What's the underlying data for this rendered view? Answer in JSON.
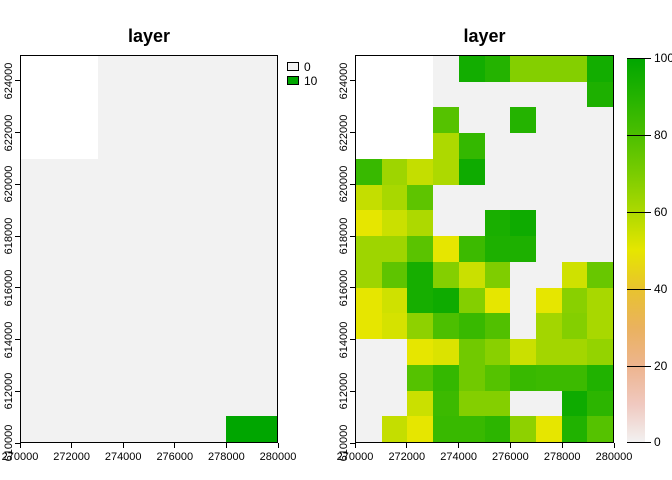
{
  "figure": {
    "background": "#ffffff",
    "na_color": "#ffffff"
  },
  "palette": {
    "name": "reversed-terrain-colors",
    "low_color": "#F2F2F2",
    "high_color": "#00A600",
    "stops": [
      "#F2F2F2",
      "#F0C9C0",
      "#EDB48E",
      "#EAB25E",
      "#E8C32E",
      "#E6E600",
      "#ADD900",
      "#7ACC00",
      "#4CBF00",
      "#24B300",
      "#00A600"
    ]
  },
  "chart_data": [
    {
      "type": "heatmap",
      "title": "layer",
      "x_range": [
        270000,
        280000
      ],
      "y_range": [
        610000,
        625000
      ],
      "cell_size": 1000,
      "x_ticks": [
        "270000",
        "272000",
        "274000",
        "276000",
        "278000",
        "280000"
      ],
      "y_ticks": [
        "610000",
        "612000",
        "614000",
        "616000",
        "618000",
        "620000",
        "622000",
        "624000"
      ],
      "domain": [
        0,
        10
      ],
      "legend": {
        "type": "discrete",
        "entries": [
          {
            "label": "0",
            "value": 0
          },
          {
            "label": "10",
            "value": 10
          }
        ]
      },
      "orientation": "rows top-to-bottom (y 625000 to 610000), cols left-to-right; null = NA (white)",
      "values": [
        [
          null,
          null,
          null,
          0,
          0,
          0,
          0,
          0,
          0,
          0
        ],
        [
          null,
          null,
          null,
          0,
          0,
          0,
          0,
          0,
          0,
          0
        ],
        [
          null,
          null,
          null,
          0,
          0,
          0,
          0,
          0,
          0,
          0
        ],
        [
          null,
          null,
          null,
          0,
          0,
          0,
          0,
          0,
          0,
          0
        ],
        [
          0,
          0,
          0,
          0,
          0,
          0,
          0,
          0,
          0,
          0
        ],
        [
          0,
          0,
          0,
          0,
          0,
          0,
          0,
          0,
          0,
          0
        ],
        [
          0,
          0,
          0,
          0,
          0,
          0,
          0,
          0,
          0,
          0
        ],
        [
          0,
          0,
          0,
          0,
          0,
          0,
          0,
          0,
          0,
          0
        ],
        [
          0,
          0,
          0,
          0,
          0,
          0,
          0,
          0,
          0,
          0
        ],
        [
          0,
          0,
          0,
          0,
          0,
          0,
          0,
          0,
          0,
          0
        ],
        [
          0,
          0,
          0,
          0,
          0,
          0,
          0,
          0,
          0,
          0
        ],
        [
          0,
          0,
          0,
          0,
          0,
          0,
          0,
          0,
          0,
          0
        ],
        [
          0,
          0,
          0,
          0,
          0,
          0,
          0,
          0,
          0,
          0
        ],
        [
          0,
          0,
          0,
          0,
          0,
          0,
          0,
          0,
          0,
          0
        ],
        [
          0,
          0,
          0,
          0,
          0,
          0,
          0,
          0,
          10,
          10
        ]
      ]
    },
    {
      "type": "heatmap",
      "title": "layer",
      "x_range": [
        270000,
        280000
      ],
      "y_range": [
        610000,
        625000
      ],
      "cell_size": 1000,
      "x_ticks": [
        "270000",
        "272000",
        "274000",
        "276000",
        "278000",
        "280000"
      ],
      "y_ticks": [
        "610000",
        "612000",
        "614000",
        "616000",
        "618000",
        "620000",
        "622000",
        "624000"
      ],
      "domain": [
        0,
        100
      ],
      "legend": {
        "type": "colorbar",
        "ticks": [
          "0",
          "20",
          "40",
          "60",
          "80",
          "100"
        ],
        "min": 0,
        "max": 100
      },
      "orientation": "rows top-to-bottom (y 625000 to 610000), cols left-to-right; null = NA (white)",
      "values": [
        [
          null,
          null,
          null,
          0,
          95,
          90,
          68,
          68,
          68,
          95
        ],
        [
          null,
          null,
          null,
          0,
          0,
          0,
          0,
          0,
          0,
          92
        ],
        [
          null,
          null,
          null,
          78,
          0,
          0,
          90,
          0,
          0,
          0
        ],
        [
          null,
          null,
          null,
          60,
          86,
          0,
          0,
          0,
          0,
          0
        ],
        [
          85,
          63,
          56,
          60,
          96,
          0,
          0,
          0,
          0,
          0
        ],
        [
          56,
          61,
          76,
          0,
          0,
          0,
          0,
          0,
          0,
          0
        ],
        [
          50,
          55,
          60,
          0,
          0,
          93,
          96,
          0,
          0,
          0
        ],
        [
          63,
          63,
          77,
          50,
          84,
          92,
          92,
          0,
          0,
          0
        ],
        [
          63,
          76,
          94,
          68,
          55,
          69,
          0,
          0,
          54,
          74
        ],
        [
          50,
          54,
          94,
          96,
          68,
          50,
          0,
          50,
          67,
          61
        ],
        [
          50,
          53,
          66,
          80,
          85,
          79,
          0,
          62,
          68,
          61
        ],
        [
          0,
          0,
          50,
          52,
          72,
          67,
          55,
          62,
          62,
          65
        ],
        [
          0,
          0,
          78,
          86,
          72,
          78,
          85,
          84,
          84,
          91
        ],
        [
          0,
          0,
          55,
          84,
          68,
          68,
          0,
          0,
          96,
          88
        ],
        [
          0,
          56,
          50,
          85,
          85,
          88,
          66,
          50,
          91,
          78
        ]
      ]
    }
  ]
}
